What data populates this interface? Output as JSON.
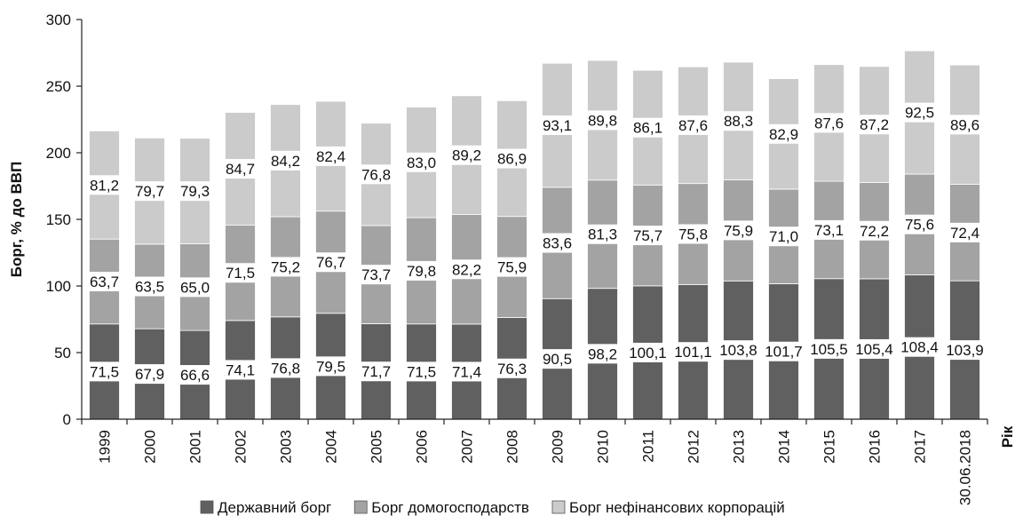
{
  "chart_data": {
    "type": "bar",
    "stacked": true,
    "ylabel": "Борг, % до ВВП",
    "xlabel": "Рік",
    "ylim": [
      0,
      300
    ],
    "yticks": [
      "0",
      "50",
      "100",
      "150",
      "200",
      "250",
      "300"
    ],
    "grid": false,
    "legend_position": "bottom",
    "categories": [
      "1999",
      "2000",
      "2001",
      "2002",
      "2003",
      "2004",
      "2005",
      "2006",
      "2007",
      "2008",
      "2009",
      "2010",
      "2011",
      "2012",
      "2013",
      "2014",
      "2015",
      "2016",
      "2017",
      "30.06.2018"
    ],
    "series": [
      {
        "name": "Державний борг",
        "color": "#606060",
        "values": [
          71.5,
          67.9,
          66.6,
          74.1,
          76.8,
          79.5,
          71.7,
          71.5,
          71.4,
          76.3,
          90.5,
          98.2,
          100.1,
          101.1,
          103.8,
          101.7,
          105.5,
          105.4,
          108.4,
          103.9
        ],
        "labels": [
          "71,5",
          "67,9",
          "66,6",
          "74,1",
          "76,8",
          "79,5",
          "71,7",
          "71,5",
          "71,4",
          "76,3",
          "90,5",
          "98,2",
          "100,1",
          "101,1",
          "103,8",
          "101,7",
          "105,5",
          "105,4",
          "108,4",
          "103,9"
        ]
      },
      {
        "name": "Борг домогосподарств",
        "color": "#a3a3a3",
        "values": [
          63.7,
          63.5,
          65.0,
          71.5,
          75.2,
          76.7,
          73.7,
          79.8,
          82.2,
          75.9,
          83.6,
          81.3,
          75.7,
          75.8,
          75.9,
          71.0,
          73.1,
          72.2,
          75.6,
          72.4
        ],
        "labels": [
          "63,7",
          "63,5",
          "65,0",
          "71,5",
          "75,2",
          "76,7",
          "73,7",
          "79,8",
          "82,2",
          "75,9",
          "83,6",
          "81,3",
          "75,7",
          "75,8",
          "75,9",
          "71,0",
          "73,1",
          "72,2",
          "75,6",
          "72,4"
        ]
      },
      {
        "name": "Борг нефінансових корпорацій",
        "color": "#cbcbcb",
        "values": [
          81.2,
          79.7,
          79.3,
          84.7,
          84.2,
          82.4,
          76.8,
          83.0,
          89.2,
          86.9,
          93.1,
          89.8,
          86.1,
          87.6,
          88.3,
          82.9,
          87.6,
          87.2,
          92.5,
          89.6
        ],
        "labels": [
          "81,2",
          "79,7",
          "79,3",
          "84,7",
          "84,2",
          "82,4",
          "76,8",
          "83,0",
          "89,2",
          "86,9",
          "93,1",
          "89,8",
          "86,1",
          "87,6",
          "88,3",
          "82,9",
          "87,6",
          "87,2",
          "92,5",
          "89,6"
        ]
      }
    ]
  }
}
